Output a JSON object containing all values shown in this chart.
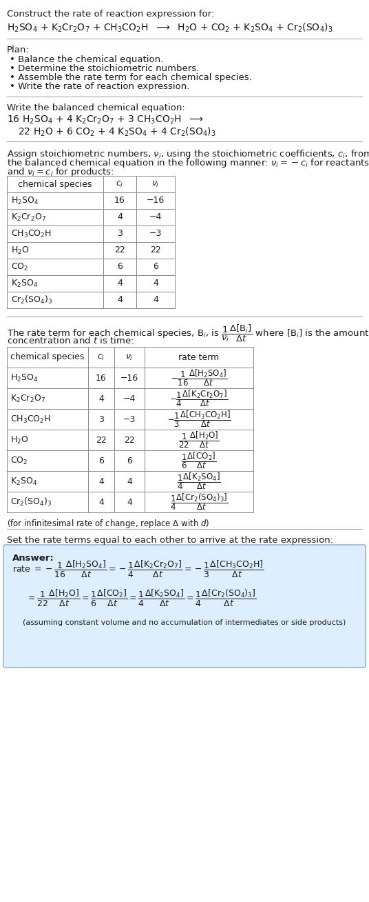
{
  "bg_color": "#ffffff",
  "text_color": "#1a1a1a",
  "table_border_color": "#888888",
  "separator_color": "#aaaaaa",
  "answer_box_color": "#ddeeff",
  "answer_box_border": "#88aacc",
  "font_size": 9.5
}
